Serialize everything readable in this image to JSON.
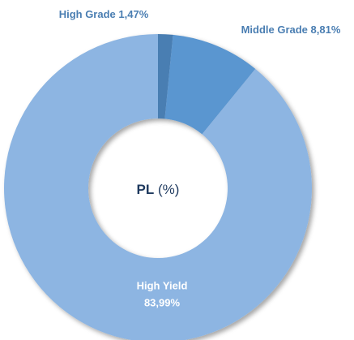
{
  "chart_data": {
    "type": "donut",
    "categories": [
      "High Grade",
      "Middle Grade",
      "High Yield"
    ],
    "values": [
      1.47,
      8.81,
      83.99
    ],
    "value_labels": [
      "1,47%",
      "8,81%",
      "83,99%"
    ],
    "colors": [
      "#4a7eb2",
      "#5a96d0",
      "#8db5e2"
    ],
    "center_label": {
      "bold": "PL",
      "normal": "(%)"
    }
  }
}
